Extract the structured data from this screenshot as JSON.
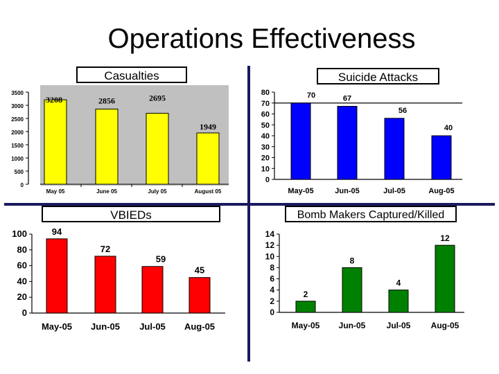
{
  "page": {
    "title": "Operations Effectiveness"
  },
  "chart_data": [
    {
      "type": "bar",
      "title": "Casualties",
      "categories": [
        "May 05",
        "June 05",
        "July 05",
        "August 05"
      ],
      "values": [
        3208,
        2856,
        2695,
        1949
      ],
      "value_labels": [
        "3208",
        "2856",
        "2695",
        "1949"
      ],
      "ylim": [
        0,
        3500
      ],
      "yticks": [
        "0",
        "500",
        "1000",
        "1500",
        "2000",
        "2500",
        "3000",
        "3500"
      ],
      "color": "#ffff00",
      "grid": false
    },
    {
      "type": "bar",
      "title": "Suicide Attacks",
      "categories": [
        "May-05",
        "Jun-05",
        "Jul-05",
        "Aug-05"
      ],
      "values": [
        70,
        67,
        56,
        40
      ],
      "value_labels": [
        "70",
        "67",
        "56",
        "40"
      ],
      "ylim": [
        0,
        80
      ],
      "yticks": [
        "0",
        "10",
        "20",
        "30",
        "40",
        "50",
        "60",
        "70",
        "80"
      ],
      "reference_line": 70,
      "color": "#0000ff",
      "grid": false
    },
    {
      "type": "bar",
      "title": "VBIEDs",
      "categories": [
        "May-05",
        "Jun-05",
        "Jul-05",
        "Aug-05"
      ],
      "values": [
        94,
        72,
        59,
        45
      ],
      "value_labels": [
        "94",
        "72",
        "59",
        "45"
      ],
      "ylim": [
        0,
        100
      ],
      "yticks": [
        "0",
        "20",
        "40",
        "60",
        "80",
        "100"
      ],
      "color": "#ff0000",
      "grid": false
    },
    {
      "type": "bar",
      "title": "Bomb Makers Captured/Killed",
      "categories": [
        "May-05",
        "Jun-05",
        "Jul-05",
        "Aug-05"
      ],
      "values": [
        2,
        8,
        4,
        12
      ],
      "value_labels": [
        "2",
        "8",
        "4",
        "12"
      ],
      "ylim": [
        0,
        14
      ],
      "yticks": [
        "0",
        "2",
        "4",
        "6",
        "8",
        "10",
        "12",
        "14"
      ],
      "color": "#008000",
      "grid": false
    }
  ]
}
